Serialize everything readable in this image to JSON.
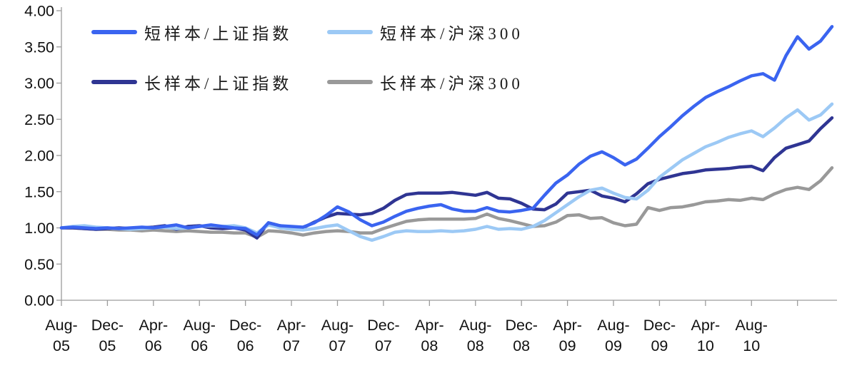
{
  "chart_data": {
    "type": "line",
    "title": "",
    "grid": false,
    "legend_position": "top-left-inside",
    "y_axis": {
      "min": 0,
      "max": 4,
      "step": 0.5,
      "tick_labels": [
        "0.00",
        "0.50",
        "1.00",
        "1.50",
        "2.00",
        "2.50",
        "3.00",
        "3.50",
        "4.00"
      ]
    },
    "x_axis": {
      "note_months_per_label": 4,
      "labels": [
        [
          "Aug-",
          "05"
        ],
        [
          "Dec-",
          "05"
        ],
        [
          "Apr-",
          "06"
        ],
        [
          "Aug-",
          "06"
        ],
        [
          "Dec-",
          "06"
        ],
        [
          "Apr-",
          "07"
        ],
        [
          "Aug-",
          "07"
        ],
        [
          "Dec-",
          "07"
        ],
        [
          "Apr-",
          "08"
        ],
        [
          "Aug-",
          "08"
        ],
        [
          "Dec-",
          "08"
        ],
        [
          "Apr-",
          "09"
        ],
        [
          "Aug-",
          "09"
        ],
        [
          "Dec-",
          "09"
        ],
        [
          "Apr-",
          "10"
        ],
        [
          "Aug-",
          "10"
        ]
      ]
    },
    "series": [
      {
        "id": "short-sse",
        "name": "短样本/上证指数",
        "color": "#3A64F0",
        "values": [
          1.0,
          1.01,
          1.0,
          0.99,
          1.0,
          0.99,
          1.0,
          1.01,
          1.0,
          1.02,
          1.04,
          1.0,
          1.02,
          1.04,
          1.02,
          1.0,
          0.99,
          0.9,
          1.07,
          1.03,
          1.02,
          1.01,
          1.07,
          1.17,
          1.29,
          1.22,
          1.11,
          1.03,
          1.08,
          1.16,
          1.23,
          1.27,
          1.3,
          1.32,
          1.26,
          1.23,
          1.23,
          1.28,
          1.23,
          1.22,
          1.24,
          1.27,
          1.45,
          1.62,
          1.73,
          1.88,
          1.99,
          2.05,
          1.97,
          1.87,
          1.95,
          2.1,
          2.26,
          2.4,
          2.55,
          2.68,
          2.8,
          2.88,
          2.95,
          3.03,
          3.1,
          3.13,
          3.04,
          3.38,
          3.64,
          3.47,
          3.58,
          3.78
        ]
      },
      {
        "id": "short-csi300",
        "name": "短样本/沪深300",
        "color": "#9CC9F5",
        "values": [
          1.0,
          1.02,
          1.03,
          1.01,
          1.0,
          0.99,
          0.98,
          0.99,
          1.0,
          1.01,
          0.99,
          1.0,
          1.02,
          1.03,
          1.02,
          1.03,
          1.0,
          0.93,
          1.04,
          1.0,
          0.98,
          0.97,
          0.99,
          1.02,
          1.04,
          0.96,
          0.88,
          0.83,
          0.88,
          0.94,
          0.96,
          0.95,
          0.95,
          0.96,
          0.95,
          0.96,
          0.98,
          1.02,
          0.98,
          0.99,
          0.98,
          1.02,
          1.1,
          1.21,
          1.32,
          1.43,
          1.52,
          1.55,
          1.48,
          1.42,
          1.4,
          1.52,
          1.7,
          1.82,
          1.94,
          2.03,
          2.12,
          2.18,
          2.25,
          2.3,
          2.34,
          2.26,
          2.38,
          2.52,
          2.63,
          2.49,
          2.56,
          2.71
        ]
      },
      {
        "id": "long-sse",
        "name": "长样本/上证指数",
        "color": "#2F3593",
        "values": [
          1.0,
          1.0,
          0.99,
          0.98,
          0.99,
          1.0,
          0.99,
          1.0,
          1.01,
          1.03,
          0.98,
          1.02,
          1.03,
          1.0,
          0.99,
          1.0,
          0.97,
          0.86,
          1.07,
          1.03,
          1.0,
          1.0,
          1.08,
          1.15,
          1.2,
          1.19,
          1.18,
          1.2,
          1.27,
          1.38,
          1.46,
          1.48,
          1.48,
          1.48,
          1.49,
          1.47,
          1.45,
          1.49,
          1.41,
          1.4,
          1.34,
          1.26,
          1.25,
          1.33,
          1.48,
          1.5,
          1.52,
          1.44,
          1.41,
          1.36,
          1.47,
          1.61,
          1.67,
          1.71,
          1.75,
          1.77,
          1.8,
          1.81,
          1.82,
          1.84,
          1.85,
          1.79,
          1.97,
          2.1,
          2.15,
          2.2,
          2.37,
          2.52
        ]
      },
      {
        "id": "long-csi300",
        "name": "长样本/沪深300",
        "color": "#999999",
        "values": [
          1.0,
          1.0,
          0.99,
          0.98,
          0.98,
          0.97,
          0.97,
          0.96,
          0.97,
          0.96,
          0.95,
          0.96,
          0.95,
          0.94,
          0.94,
          0.93,
          0.93,
          0.87,
          0.96,
          0.95,
          0.93,
          0.9,
          0.93,
          0.95,
          0.96,
          0.95,
          0.93,
          0.93,
          0.99,
          1.04,
          1.09,
          1.11,
          1.12,
          1.12,
          1.12,
          1.12,
          1.13,
          1.19,
          1.13,
          1.1,
          1.06,
          1.02,
          1.03,
          1.08,
          1.17,
          1.18,
          1.13,
          1.14,
          1.07,
          1.03,
          1.05,
          1.28,
          1.24,
          1.28,
          1.29,
          1.32,
          1.36,
          1.37,
          1.39,
          1.38,
          1.41,
          1.39,
          1.47,
          1.53,
          1.56,
          1.53,
          1.65,
          1.83
        ]
      }
    ]
  },
  "legend": {
    "items": [
      {
        "label": "短样本/上证指数"
      },
      {
        "label": "短样本/沪深300"
      },
      {
        "label": "长样本/上证指数"
      },
      {
        "label": "长样本/沪深300"
      }
    ]
  }
}
